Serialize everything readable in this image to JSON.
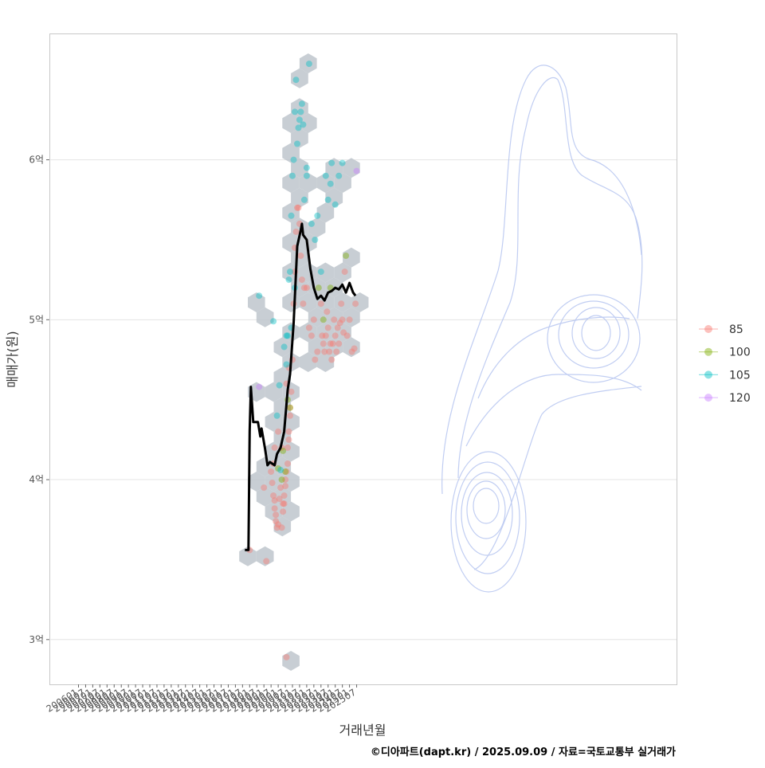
{
  "chart_data": {
    "type": "scatter",
    "xlabel": "거래년월",
    "ylabel": "매매가(원)",
    "caption": "©디아파트(dapt.kr) / 2025.09.09 / 자료=국토교통부 실거래가",
    "x_ticks": [
      "200601",
      "200607",
      "200701",
      "200707",
      "200801",
      "200807",
      "200901",
      "200907",
      "201001",
      "201007",
      "201101",
      "201107",
      "201201",
      "201207",
      "201301",
      "201307",
      "201401",
      "201407",
      "201501",
      "201507",
      "201601",
      "201607",
      "201701",
      "201707",
      "201801",
      "201807",
      "201901",
      "201907",
      "202001",
      "202007",
      "202101",
      "202107",
      "202201",
      "202207",
      "202301",
      "202307",
      "202401",
      "202407",
      "202501",
      "202507"
    ],
    "y_ticks": [
      {
        "value": 3,
        "label": "3억"
      },
      {
        "value": 4,
        "label": "4억"
      },
      {
        "value": 5,
        "label": "5억"
      },
      {
        "value": 6,
        "label": "6억"
      }
    ],
    "y_unit": "억 원",
    "ylim": [
      2.72,
      6.79
    ],
    "grid": true,
    "legend_position": "right",
    "legend": [
      {
        "label": "85",
        "color": "#F8766D"
      },
      {
        "label": "100",
        "color": "#7CAE00"
      },
      {
        "label": "105",
        "color": "#00BFC4"
      },
      {
        "label": "120",
        "color": "#C77CFF"
      }
    ],
    "moving_average": [
      [
        "2017-09",
        3.56
      ],
      [
        "2017-12",
        3.56
      ],
      [
        "2018-01",
        4.3
      ],
      [
        "2018-02",
        4.58
      ],
      [
        "2018-04",
        4.36
      ],
      [
        "2018-08",
        4.36
      ],
      [
        "2018-10",
        4.27
      ],
      [
        "2018-11",
        4.32
      ],
      [
        "2019-02",
        4.19
      ],
      [
        "2019-04",
        4.09
      ],
      [
        "2019-06",
        4.11
      ],
      [
        "2019-10",
        4.09
      ],
      [
        "2019-12",
        4.16
      ],
      [
        "2020-03",
        4.2
      ],
      [
        "2020-06",
        4.3
      ],
      [
        "2020-09",
        4.56
      ],
      [
        "2020-11",
        4.66
      ],
      [
        "2021-02",
        4.98
      ],
      [
        "2021-05",
        5.46
      ],
      [
        "2021-08",
        5.56
      ],
      [
        "2021-09",
        5.6
      ],
      [
        "2021-10",
        5.53
      ],
      [
        "2022-01",
        5.5
      ],
      [
        "2022-04",
        5.32
      ],
      [
        "2022-07",
        5.2
      ],
      [
        "2022-10",
        5.13
      ],
      [
        "2023-01",
        5.15
      ],
      [
        "2023-04",
        5.12
      ],
      [
        "2023-07",
        5.17
      ],
      [
        "2023-10",
        5.18
      ],
      [
        "2024-01",
        5.2
      ],
      [
        "2024-04",
        5.19
      ],
      [
        "2024-07",
        5.22
      ],
      [
        "2024-10",
        5.17
      ],
      [
        "2025-01",
        5.23
      ],
      [
        "2025-04",
        5.17
      ],
      [
        "2025-06",
        5.15
      ]
    ],
    "series": [
      {
        "name": "85",
        "points": [
          [
            "2018-01",
            3.56
          ],
          [
            "2019-03",
            3.49
          ],
          [
            "2020-08",
            2.89
          ],
          [
            "2019-01",
            3.95
          ],
          [
            "2019-08",
            3.98
          ],
          [
            "2019-09",
            3.9
          ],
          [
            "2019-10",
            3.87
          ],
          [
            "2019-10",
            3.82
          ],
          [
            "2019-11",
            3.78
          ],
          [
            "2019-11",
            3.74
          ],
          [
            "2019-12",
            3.7
          ],
          [
            "2020-01",
            3.72
          ],
          [
            "2020-02",
            3.88
          ],
          [
            "2020-03",
            3.95
          ],
          [
            "2020-04",
            3.7
          ],
          [
            "2020-05",
            3.85
          ],
          [
            "2020-05",
            3.8
          ],
          [
            "2020-06",
            3.9
          ],
          [
            "2020-07",
            3.96
          ],
          [
            "2020-07",
            4.0
          ],
          [
            "2020-08",
            4.05
          ],
          [
            "2020-09",
            4.1
          ],
          [
            "2020-09",
            4.2
          ],
          [
            "2020-10",
            4.25
          ],
          [
            "2020-10",
            4.3
          ],
          [
            "2020-11",
            4.4
          ],
          [
            "2020-11",
            4.45
          ],
          [
            "2020-12",
            4.55
          ],
          [
            "2019-07",
            4.05
          ],
          [
            "2019-09",
            4.1
          ],
          [
            "2019-10",
            4.2
          ],
          [
            "2020-01",
            4.3
          ],
          [
            "2020-04",
            4.2
          ],
          [
            "2020-06",
            3.85
          ],
          [
            "2020-08",
            4.6
          ],
          [
            "2020-10",
            4.7
          ],
          [
            "2021-01",
            4.75
          ],
          [
            "2021-02",
            5.1
          ],
          [
            "2021-03",
            5.3
          ],
          [
            "2021-03",
            5.45
          ],
          [
            "2021-04",
            5.55
          ],
          [
            "2021-05",
            5.7
          ],
          [
            "2021-06",
            5.7
          ],
          [
            "2021-07",
            5.6
          ],
          [
            "2021-08",
            5.4
          ],
          [
            "2021-09",
            5.25
          ],
          [
            "2021-10",
            5.1
          ],
          [
            "2021-11",
            5.2
          ],
          [
            "2022-01",
            5.2
          ],
          [
            "2022-03",
            4.95
          ],
          [
            "2022-05",
            4.9
          ],
          [
            "2022-07",
            5.0
          ],
          [
            "2022-08",
            4.75
          ],
          [
            "2022-10",
            4.8
          ],
          [
            "2023-01",
            5.1
          ],
          [
            "2023-02",
            4.9
          ],
          [
            "2023-03",
            4.85
          ],
          [
            "2023-04",
            4.8
          ],
          [
            "2023-05",
            4.9
          ],
          [
            "2023-06",
            5.05
          ],
          [
            "2023-07",
            4.95
          ],
          [
            "2023-08",
            4.8
          ],
          [
            "2023-09",
            4.85
          ],
          [
            "2023-10",
            4.75
          ],
          [
            "2023-11",
            4.85
          ],
          [
            "2023-12",
            5.0
          ],
          [
            "2024-01",
            4.9
          ],
          [
            "2024-02",
            4.8
          ],
          [
            "2024-03",
            4.95
          ],
          [
            "2024-04",
            4.85
          ],
          [
            "2024-05",
            4.98
          ],
          [
            "2024-06",
            5.1
          ],
          [
            "2024-07",
            5.0
          ],
          [
            "2024-08",
            4.92
          ],
          [
            "2024-09",
            5.3
          ],
          [
            "2024-11",
            4.9
          ],
          [
            "2025-01",
            5.0
          ],
          [
            "2025-03",
            4.8
          ],
          [
            "2025-05",
            4.82
          ],
          [
            "2025-06",
            5.1
          ]
        ]
      },
      {
        "name": "100",
        "points": [
          [
            "2020-01",
            4.07
          ],
          [
            "2020-04",
            4.0
          ],
          [
            "2020-05",
            4.18
          ],
          [
            "2020-07",
            4.05
          ],
          [
            "2020-09",
            4.5
          ],
          [
            "2020-11",
            4.45
          ],
          [
            "2022-11",
            5.2
          ],
          [
            "2023-03",
            5.0
          ],
          [
            "2023-09",
            5.2
          ],
          [
            "2024-10",
            5.4
          ]
        ]
      },
      {
        "name": "105",
        "points": [
          [
            "2018-09",
            5.15
          ],
          [
            "2019-09",
            4.99
          ],
          [
            "2019-12",
            4.4
          ],
          [
            "2020-02",
            4.59
          ],
          [
            "2020-06",
            4.83
          ],
          [
            "2020-08",
            4.9
          ],
          [
            "2020-09",
            4.9
          ],
          [
            "2020-10",
            5.25
          ],
          [
            "2020-11",
            5.3
          ],
          [
            "2020-12",
            5.65
          ],
          [
            "2021-01",
            5.9
          ],
          [
            "2021-02",
            6.0
          ],
          [
            "2021-03",
            6.3
          ],
          [
            "2021-04",
            6.5
          ],
          [
            "2021-05",
            6.1
          ],
          [
            "2021-06",
            6.2
          ],
          [
            "2021-07",
            6.25
          ],
          [
            "2021-08",
            6.3
          ],
          [
            "2021-09",
            6.35
          ],
          [
            "2021-10",
            6.22
          ],
          [
            "2021-11",
            5.75
          ],
          [
            "2022-01",
            5.9
          ],
          [
            "2022-03",
            6.6
          ],
          [
            "2022-05",
            5.6
          ],
          [
            "2022-08",
            5.5
          ],
          [
            "2022-10",
            5.65
          ],
          [
            "2023-01",
            5.3
          ],
          [
            "2023-05",
            5.9
          ],
          [
            "2023-07",
            5.75
          ],
          [
            "2023-09",
            5.85
          ],
          [
            "2023-10",
            5.98
          ],
          [
            "2024-01",
            5.72
          ],
          [
            "2024-04",
            5.9
          ],
          [
            "2024-07",
            5.98
          ],
          [
            "2020-08",
            4.72
          ],
          [
            "2020-12",
            4.95
          ],
          [
            "2021-03",
            5.2
          ],
          [
            "2022-01",
            5.95
          ],
          [
            "2020-03",
            4.06
          ]
        ]
      },
      {
        "name": "120",
        "points": [
          [
            "2018-09",
            4.58
          ],
          [
            "2025-07",
            5.93
          ]
        ]
      }
    ]
  }
}
